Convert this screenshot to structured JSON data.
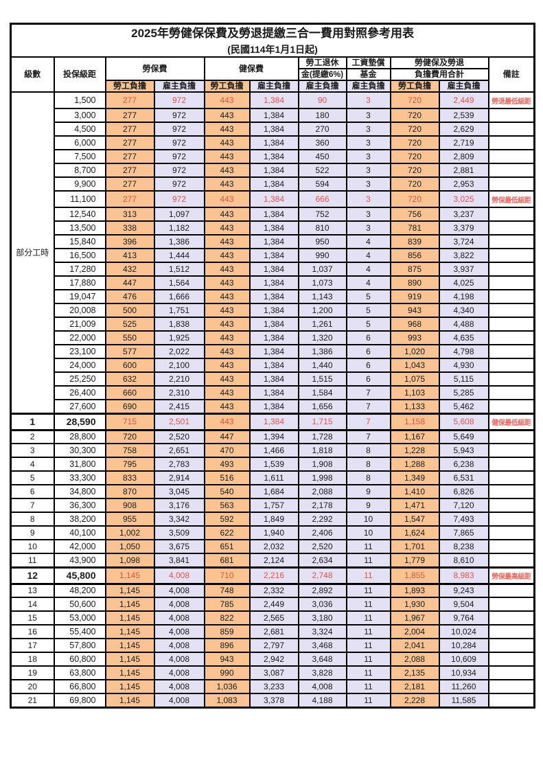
{
  "title": "2025年勞健保保費及勞退提繳三合一費用對照參考用表",
  "subtitle": "(民國114年1月1日起)",
  "colors": {
    "employee_col_bg": "#F9C491",
    "employer_col_bg": "#E3E1F3",
    "highlight_text": "#E8534A",
    "note_text": "#F0655C",
    "border": "#000000"
  },
  "header": {
    "level": "級數",
    "salary_bracket": "投保級距",
    "labor_insurance": "勞保費",
    "health_insurance": "健保費",
    "pension_line1": "勞工退休",
    "pension_line2": "金(提繳6%)",
    "wage_fund_line1": "工資墊償",
    "wage_fund_line2": "基金",
    "total_line1": "勞健保及勞退",
    "total_line2": "負擔費用合計",
    "remark": "備註",
    "employee_share": "勞工負擔",
    "employer_share": "雇主負擔"
  },
  "part_time": {
    "label": "部分工時",
    "span": 23
  },
  "rows": [
    {
      "level": "",
      "salary": "1,500",
      "values": [
        "277",
        "972",
        "443",
        "1,384",
        "90",
        "3",
        "720",
        "2,449"
      ],
      "note": "勞退最低級距",
      "red": true,
      "bold": false
    },
    {
      "level": "",
      "salary": "3,000",
      "values": [
        "277",
        "972",
        "443",
        "1,384",
        "180",
        "3",
        "720",
        "2,539"
      ],
      "note": "",
      "red": false,
      "bold": false
    },
    {
      "level": "",
      "salary": "4,500",
      "values": [
        "277",
        "972",
        "443",
        "1,384",
        "270",
        "3",
        "720",
        "2,629"
      ],
      "note": "",
      "red": false,
      "bold": false
    },
    {
      "level": "",
      "salary": "6,000",
      "values": [
        "277",
        "972",
        "443",
        "1,384",
        "360",
        "3",
        "720",
        "2,719"
      ],
      "note": "",
      "red": false,
      "bold": false
    },
    {
      "level": "",
      "salary": "7,500",
      "values": [
        "277",
        "972",
        "443",
        "1,384",
        "450",
        "3",
        "720",
        "2,809"
      ],
      "note": "",
      "red": false,
      "bold": false
    },
    {
      "level": "",
      "salary": "8,700",
      "values": [
        "277",
        "972",
        "443",
        "1,384",
        "522",
        "3",
        "720",
        "2,881"
      ],
      "note": "",
      "red": false,
      "bold": false
    },
    {
      "level": "",
      "salary": "9,900",
      "values": [
        "277",
        "972",
        "443",
        "1,384",
        "594",
        "3",
        "720",
        "2,953"
      ],
      "note": "",
      "red": false,
      "bold": false
    },
    {
      "level": "",
      "salary": "11,100",
      "values": [
        "277",
        "972",
        "443",
        "1,384",
        "666",
        "3",
        "720",
        "3,025"
      ],
      "note": "勞保最低級距",
      "red": true,
      "bold": false
    },
    {
      "level": "",
      "salary": "12,540",
      "values": [
        "313",
        "1,097",
        "443",
        "1,384",
        "752",
        "3",
        "756",
        "3,237"
      ],
      "note": "",
      "red": false,
      "bold": false
    },
    {
      "level": "",
      "salary": "13,500",
      "values": [
        "338",
        "1,182",
        "443",
        "1,384",
        "810",
        "3",
        "781",
        "3,379"
      ],
      "note": "",
      "red": false,
      "bold": false
    },
    {
      "level": "",
      "salary": "15,840",
      "values": [
        "396",
        "1,386",
        "443",
        "1,384",
        "950",
        "4",
        "839",
        "3,724"
      ],
      "note": "",
      "red": false,
      "bold": false
    },
    {
      "level": "",
      "salary": "16,500",
      "values": [
        "413",
        "1,444",
        "443",
        "1,384",
        "990",
        "4",
        "856",
        "3,822"
      ],
      "note": "",
      "red": false,
      "bold": false
    },
    {
      "level": "",
      "salary": "17,280",
      "values": [
        "432",
        "1,512",
        "443",
        "1,384",
        "1,037",
        "4",
        "875",
        "3,937"
      ],
      "note": "",
      "red": false,
      "bold": false
    },
    {
      "level": "",
      "salary": "17,880",
      "values": [
        "447",
        "1,564",
        "443",
        "1,384",
        "1,073",
        "4",
        "890",
        "4,025"
      ],
      "note": "",
      "red": false,
      "bold": false
    },
    {
      "level": "",
      "salary": "19,047",
      "values": [
        "476",
        "1,666",
        "443",
        "1,384",
        "1,143",
        "5",
        "919",
        "4,198"
      ],
      "note": "",
      "red": false,
      "bold": false
    },
    {
      "level": "",
      "salary": "20,008",
      "values": [
        "500",
        "1,751",
        "443",
        "1,384",
        "1,200",
        "5",
        "943",
        "4,340"
      ],
      "note": "",
      "red": false,
      "bold": false
    },
    {
      "level": "",
      "salary": "21,009",
      "values": [
        "525",
        "1,838",
        "443",
        "1,384",
        "1,261",
        "5",
        "968",
        "4,488"
      ],
      "note": "",
      "red": false,
      "bold": false
    },
    {
      "level": "",
      "salary": "22,000",
      "values": [
        "550",
        "1,925",
        "443",
        "1,384",
        "1,320",
        "6",
        "993",
        "4,635"
      ],
      "note": "",
      "red": false,
      "bold": false
    },
    {
      "level": "",
      "salary": "23,100",
      "values": [
        "577",
        "2,022",
        "443",
        "1,384",
        "1,386",
        "6",
        "1,020",
        "4,798"
      ],
      "note": "",
      "red": false,
      "bold": false
    },
    {
      "level": "",
      "salary": "24,000",
      "values": [
        "600",
        "2,100",
        "443",
        "1,384",
        "1,440",
        "6",
        "1,043",
        "4,930"
      ],
      "note": "",
      "red": false,
      "bold": false
    },
    {
      "level": "",
      "salary": "25,250",
      "values": [
        "632",
        "2,210",
        "443",
        "1,384",
        "1,515",
        "6",
        "1,075",
        "5,115"
      ],
      "note": "",
      "red": false,
      "bold": false
    },
    {
      "level": "",
      "salary": "26,400",
      "values": [
        "660",
        "2,310",
        "443",
        "1,384",
        "1,584",
        "7",
        "1,103",
        "5,285"
      ],
      "note": "",
      "red": false,
      "bold": false
    },
    {
      "level": "",
      "salary": "27,600",
      "values": [
        "690",
        "2,415",
        "443",
        "1,384",
        "1,656",
        "7",
        "1,133",
        "5,462"
      ],
      "note": "",
      "red": false,
      "bold": false
    },
    {
      "level": "1",
      "salary": "28,590",
      "values": [
        "715",
        "2,501",
        "443",
        "1,384",
        "1,715",
        "7",
        "1,158",
        "5,608"
      ],
      "note": "健保最低級距",
      "red": true,
      "bold": true
    },
    {
      "level": "2",
      "salary": "28,800",
      "values": [
        "720",
        "2,520",
        "447",
        "1,394",
        "1,728",
        "7",
        "1,167",
        "5,649"
      ],
      "note": "",
      "red": false,
      "bold": false
    },
    {
      "level": "3",
      "salary": "30,300",
      "values": [
        "758",
        "2,651",
        "470",
        "1,466",
        "1,818",
        "8",
        "1,228",
        "5,943"
      ],
      "note": "",
      "red": false,
      "bold": false
    },
    {
      "level": "4",
      "salary": "31,800",
      "values": [
        "795",
        "2,783",
        "493",
        "1,539",
        "1,908",
        "8",
        "1,288",
        "6,238"
      ],
      "note": "",
      "red": false,
      "bold": false
    },
    {
      "level": "5",
      "salary": "33,300",
      "values": [
        "833",
        "2,914",
        "516",
        "1,611",
        "1,998",
        "8",
        "1,349",
        "6,531"
      ],
      "note": "",
      "red": false,
      "bold": false
    },
    {
      "level": "6",
      "salary": "34,800",
      "values": [
        "870",
        "3,045",
        "540",
        "1,684",
        "2,088",
        "9",
        "1,410",
        "6,826"
      ],
      "note": "",
      "red": false,
      "bold": false
    },
    {
      "level": "7",
      "salary": "36,300",
      "values": [
        "908",
        "3,176",
        "563",
        "1,757",
        "2,178",
        "9",
        "1,471",
        "7,120"
      ],
      "note": "",
      "red": false,
      "bold": false
    },
    {
      "level": "8",
      "salary": "38,200",
      "values": [
        "955",
        "3,342",
        "592",
        "1,849",
        "2,292",
        "10",
        "1,547",
        "7,493"
      ],
      "note": "",
      "red": false,
      "bold": false
    },
    {
      "level": "9",
      "salary": "40,100",
      "values": [
        "1,002",
        "3,509",
        "622",
        "1,940",
        "2,406",
        "10",
        "1,624",
        "7,865"
      ],
      "note": "",
      "red": false,
      "bold": false
    },
    {
      "level": "10",
      "salary": "42,000",
      "values": [
        "1,050",
        "3,675",
        "651",
        "2,032",
        "2,520",
        "11",
        "1,701",
        "8,238"
      ],
      "note": "",
      "red": false,
      "bold": false
    },
    {
      "level": "11",
      "salary": "43,900",
      "values": [
        "1,098",
        "3,841",
        "681",
        "2,124",
        "2,634",
        "11",
        "1,779",
        "8,610"
      ],
      "note": "",
      "red": false,
      "bold": false
    },
    {
      "level": "12",
      "salary": "45,800",
      "values": [
        "1,145",
        "4,008",
        "710",
        "2,216",
        "2,748",
        "11",
        "1,855",
        "8,983"
      ],
      "note": "勞保最高級距",
      "red": true,
      "bold": true
    },
    {
      "level": "13",
      "salary": "48,200",
      "values": [
        "1,145",
        "4,008",
        "748",
        "2,332",
        "2,892",
        "11",
        "1,893",
        "9,243"
      ],
      "note": "",
      "red": false,
      "bold": false
    },
    {
      "level": "14",
      "salary": "50,600",
      "values": [
        "1,145",
        "4,008",
        "785",
        "2,449",
        "3,036",
        "11",
        "1,930",
        "9,504"
      ],
      "note": "",
      "red": false,
      "bold": false
    },
    {
      "level": "15",
      "salary": "53,000",
      "values": [
        "1,145",
        "4,008",
        "822",
        "2,565",
        "3,180",
        "11",
        "1,967",
        "9,764"
      ],
      "note": "",
      "red": false,
      "bold": false
    },
    {
      "level": "16",
      "salary": "55,400",
      "values": [
        "1,145",
        "4,008",
        "859",
        "2,681",
        "3,324",
        "11",
        "2,004",
        "10,024"
      ],
      "note": "",
      "red": false,
      "bold": false
    },
    {
      "level": "17",
      "salary": "57,800",
      "values": [
        "1,145",
        "4,008",
        "896",
        "2,797",
        "3,468",
        "11",
        "2,041",
        "10,284"
      ],
      "note": "",
      "red": false,
      "bold": false
    },
    {
      "level": "18",
      "salary": "60,800",
      "values": [
        "1,145",
        "4,008",
        "943",
        "2,942",
        "3,648",
        "11",
        "2,088",
        "10,609"
      ],
      "note": "",
      "red": false,
      "bold": false
    },
    {
      "level": "19",
      "salary": "63,800",
      "values": [
        "1,145",
        "4,008",
        "990",
        "3,087",
        "3,828",
        "11",
        "2,135",
        "10,934"
      ],
      "note": "",
      "red": false,
      "bold": false
    },
    {
      "level": "20",
      "salary": "66,800",
      "values": [
        "1,145",
        "4,008",
        "1,036",
        "3,233",
        "4,008",
        "11",
        "2,181",
        "11,260"
      ],
      "note": "",
      "red": false,
      "bold": false
    },
    {
      "level": "21",
      "salary": "69,800",
      "values": [
        "1,145",
        "4,008",
        "1,083",
        "3,378",
        "4,188",
        "11",
        "2,228",
        "11,585"
      ],
      "note": "",
      "red": false,
      "bold": false
    }
  ]
}
